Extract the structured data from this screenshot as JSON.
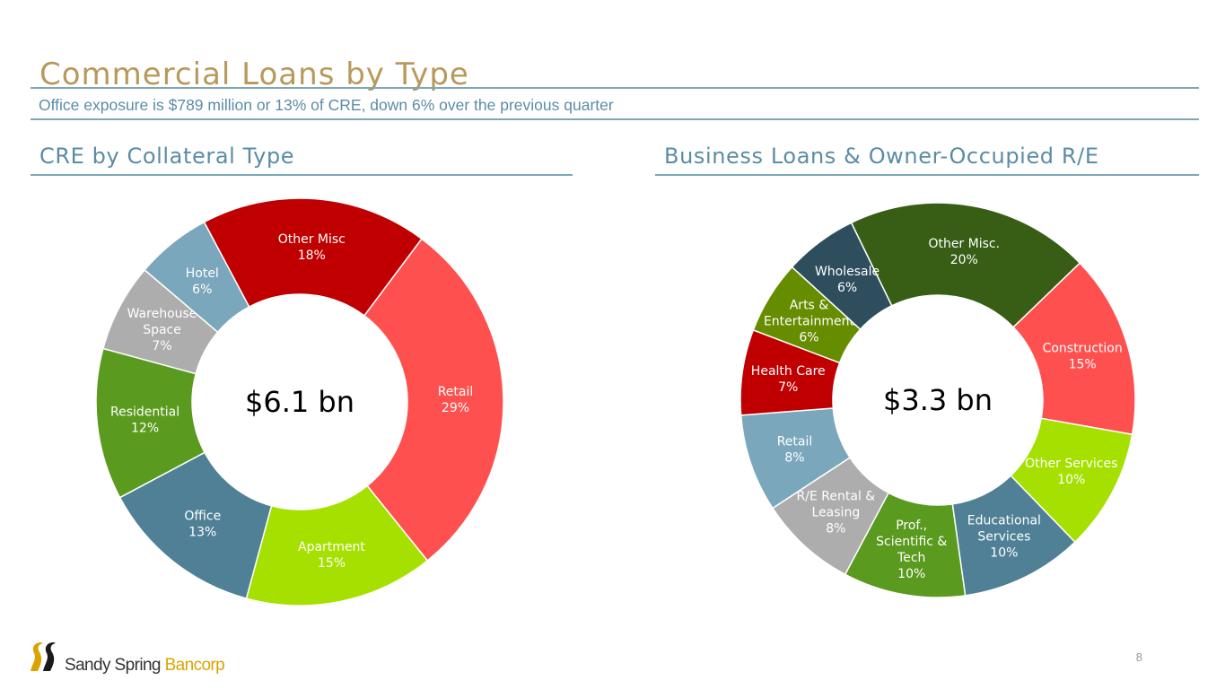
{
  "title": "Commercial Loans by Type",
  "subtitle": "Office exposure is $789 million or 13% of CRE, down 6% over the previous quarter",
  "page_number": "8",
  "brand": {
    "name_part1": "Sandy Spring ",
    "name_part2": "Bancorp",
    "color_dark": "#333333",
    "color_accent": "#D9A400"
  },
  "colors": {
    "title": "#B8995A",
    "section": "#5B8CA6",
    "rule": "#7BA7B7"
  },
  "chart_data": [
    {
      "type": "pie",
      "variant": "donut",
      "title": "CRE by Collateral Type",
      "center_label": "$6.1 bn",
      "slices": [
        {
          "label": [
            "Other Misc",
            "18%"
          ],
          "value": 18,
          "color": "#C00000"
        },
        {
          "label": [
            "Retail",
            "29%"
          ],
          "value": 29,
          "color": "#FF5050"
        },
        {
          "label": [
            "Apartment",
            "15%"
          ],
          "value": 15,
          "color": "#A5E000"
        },
        {
          "label": [
            "Office",
            "13%"
          ],
          "value": 13,
          "color": "#4F8096"
        },
        {
          "label": [
            "Residential",
            "12%"
          ],
          "value": 12,
          "color": "#5A9A1E"
        },
        {
          "label": [
            "Warehouse",
            "Space",
            "7%"
          ],
          "value": 7,
          "color": "#ADADAD"
        },
        {
          "label": [
            "Hotel",
            "6%"
          ],
          "value": 6,
          "color": "#7BA7BC"
        }
      ]
    },
    {
      "type": "pie",
      "variant": "donut",
      "title": "Business Loans & Owner-Occupied R/E",
      "center_label": "$3.3 bn",
      "slices": [
        {
          "label": [
            "Other Misc.",
            "20%"
          ],
          "value": 20,
          "color": "#375E14"
        },
        {
          "label": [
            "Construction",
            "15%"
          ],
          "value": 15,
          "color": "#FF5050"
        },
        {
          "label": [
            "Other Services",
            "10%"
          ],
          "value": 10,
          "color": "#A5E000"
        },
        {
          "label": [
            "Educational",
            "Services",
            "10%"
          ],
          "value": 10,
          "color": "#4F8096"
        },
        {
          "label": [
            "Prof.,",
            "Scientific &",
            "Tech",
            "10%"
          ],
          "value": 10,
          "color": "#5A9A1E"
        },
        {
          "label": [
            "R/E Rental &",
            "Leasing",
            "8%"
          ],
          "value": 8,
          "color": "#ADADAD"
        },
        {
          "label": [
            "Retail",
            "8%"
          ],
          "value": 8,
          "color": "#7BA7BC"
        },
        {
          "label": [
            "Health Care",
            "7%"
          ],
          "value": 7,
          "color": "#C00000"
        },
        {
          "label": [
            "Arts &",
            "Entertainment",
            "6%"
          ],
          "value": 6,
          "color": "#668C00"
        },
        {
          "label": [
            "Wholesale",
            "6%"
          ],
          "value": 6,
          "color": "#2E4E5E"
        }
      ]
    }
  ]
}
